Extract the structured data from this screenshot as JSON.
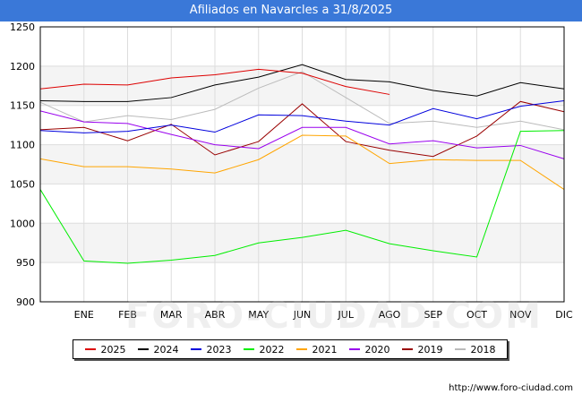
{
  "chart_data": {
    "type": "line",
    "title": "Afiliados en Navarcles a 31/8/2025",
    "categories": [
      "",
      "ENE",
      "FEB",
      "MAR",
      "ABR",
      "MAY",
      "JUN",
      "JUL",
      "AGO",
      "SEP",
      "OCT",
      "NOV",
      "DIC"
    ],
    "ylim": [
      900,
      1250
    ],
    "yticks": [
      900,
      950,
      1000,
      1050,
      1100,
      1150,
      1200,
      1250
    ],
    "grid": true,
    "legend_position": "bottom",
    "series": [
      {
        "name": "2025",
        "color": "#dd0000",
        "values": [
          1171,
          1177,
          1176,
          1185,
          1189,
          1196,
          1191,
          1174,
          1164,
          null,
          null,
          null,
          null
        ]
      },
      {
        "name": "2024",
        "color": "#000000",
        "values": [
          1156,
          1155,
          1155,
          1160,
          1176,
          1186,
          1202,
          1183,
          1180,
          1169,
          1162,
          1179,
          1171
        ]
      },
      {
        "name": "2023",
        "color": "#0000dd",
        "values": [
          1118,
          1115,
          1117,
          1125,
          1116,
          1138,
          1137,
          1130,
          1125,
          1146,
          1133,
          1149,
          1156
        ]
      },
      {
        "name": "2022",
        "color": "#00ee00",
        "values": [
          1043,
          952,
          949,
          953,
          959,
          975,
          982,
          991,
          974,
          965,
          957,
          1117,
          1118
        ]
      },
      {
        "name": "2021",
        "color": "#ffa500",
        "values": [
          1082,
          1072,
          1072,
          1069,
          1064,
          1081,
          1112,
          1111,
          1076,
          1081,
          1080,
          1080,
          1043
        ]
      },
      {
        "name": "2020",
        "color": "#9900ee",
        "values": [
          1143,
          1129,
          1127,
          1113,
          1100,
          1095,
          1122,
          1122,
          1101,
          1105,
          1096,
          1099,
          1082
        ]
      },
      {
        "name": "2019",
        "color": "#990000",
        "values": [
          1119,
          1122,
          1105,
          1126,
          1087,
          1104,
          1152,
          1104,
          1093,
          1085,
          1111,
          1155,
          1142
        ]
      },
      {
        "name": "2018",
        "color": "#bbbbbb",
        "values": [
          1154,
          1129,
          1137,
          1132,
          1145,
          1172,
          1193,
          1160,
          1127,
          1130,
          1122,
          1130,
          1119
        ]
      }
    ]
  },
  "source": "http://www.foro-ciudad.com",
  "watermark": "FORO-CIUDAD.COM"
}
